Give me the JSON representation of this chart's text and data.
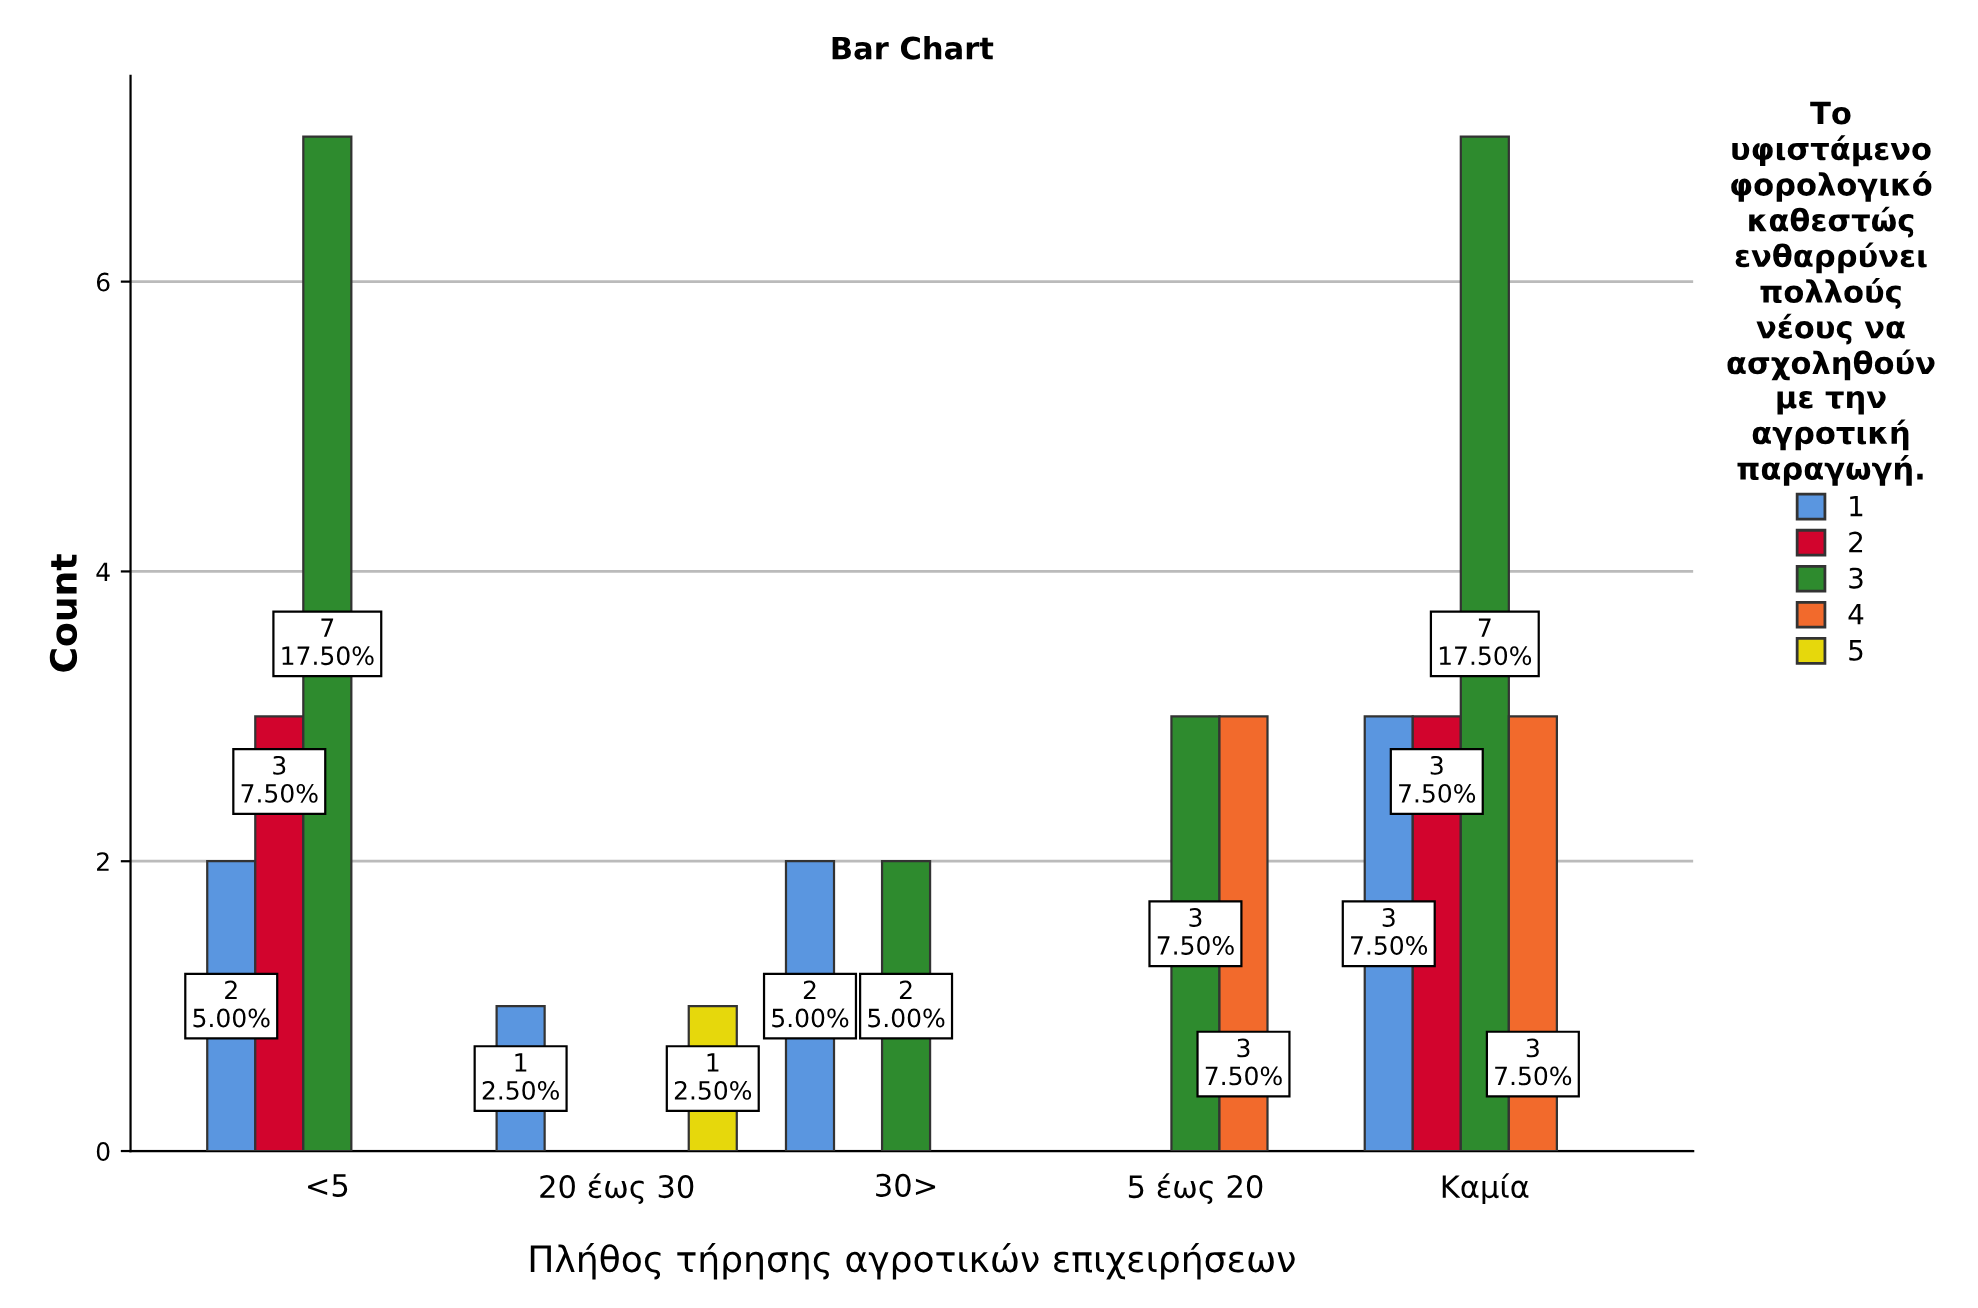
{
  "chart_data": {
    "type": "bar",
    "title": "Bar Chart",
    "xlabel": "Πλήθος τήρησης αγροτικών επιχειρήσεων",
    "ylabel": "Count",
    "categories": [
      "<5",
      "20 έως 30",
      "30>",
      "5 έως 20",
      "Καμία"
    ],
    "legend_title": "Το\nυφιστάμενο\nφορολογικό\nκαθεστώς\nενθαρρύνει\nπολλούς\nνέους να\nασχοληθούν\nμε την\nαγροτική\nπαραγωγή.",
    "series": [
      {
        "name": "1",
        "color": "#5a96e0",
        "values": [
          2,
          1,
          2,
          null,
          3
        ],
        "value_labels": [
          "2\n5.00%",
          "1\n2.50%",
          "2\n5.00%",
          null,
          "3\n7.50%"
        ]
      },
      {
        "name": "2",
        "color": "#d2042d",
        "values": [
          3,
          null,
          null,
          null,
          3
        ],
        "value_labels": [
          "3\n7.50%",
          null,
          null,
          null,
          "3\n7.50%"
        ]
      },
      {
        "name": "3",
        "color": "#2e8b2e",
        "values": [
          7,
          null,
          2,
          3,
          7
        ],
        "value_labels": [
          "7\n17.50%",
          null,
          "2\n5.00%",
          "3\n7.50%",
          "7\n17.50%"
        ]
      },
      {
        "name": "4",
        "color": "#f26a2c",
        "values": [
          null,
          null,
          null,
          3,
          3
        ],
        "value_labels": [
          null,
          null,
          null,
          "3\n7.50%",
          "3\n7.50%"
        ]
      },
      {
        "name": "5",
        "color": "#e6d80c",
        "values": [
          null,
          1,
          null,
          null,
          null
        ],
        "value_labels": [
          null,
          "1\n2.50%",
          null,
          null,
          null
        ]
      }
    ],
    "ylim": [
      0,
      7.42
    ],
    "yticks": [
      0,
      2,
      4,
      6
    ],
    "grid": "y",
    "legend": "right"
  }
}
